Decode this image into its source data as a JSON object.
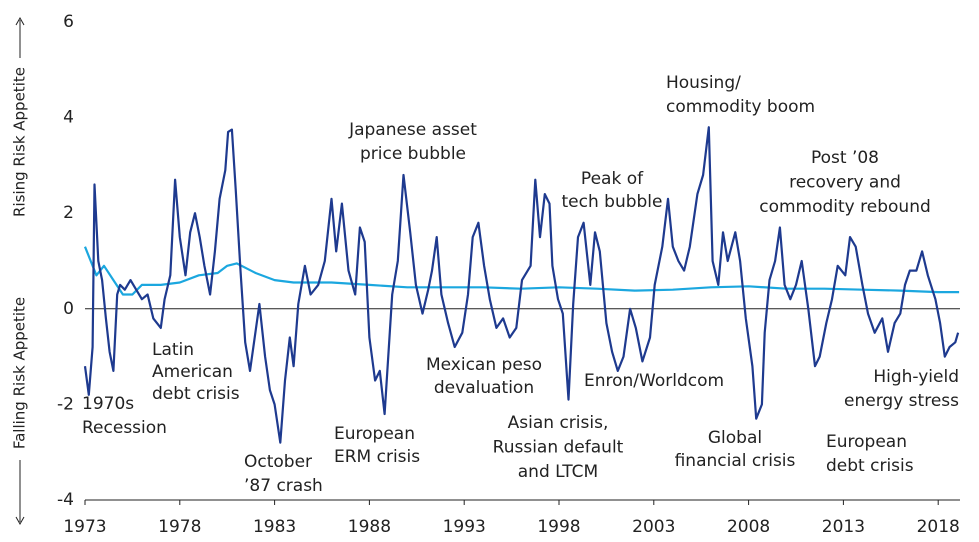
{
  "chart_data": {
    "type": "line",
    "y_label_upper": "Rising Risk Appetite",
    "y_label_lower": "Falling Risk Appetite",
    "xlim": [
      1973,
      2019.15
    ],
    "xticks": [
      1973,
      1978,
      1983,
      1988,
      1993,
      1998,
      2003,
      2008,
      2013,
      2018
    ],
    "ylim": [
      -4,
      6
    ],
    "yticks": [
      -4,
      -2,
      0,
      2,
      4,
      6
    ],
    "grid": false,
    "series": [
      {
        "color": "#1e3a8f",
        "x": [
          1973.0,
          1973.2,
          1973.4,
          1973.5,
          1973.7,
          1973.9,
          1974.1,
          1974.3,
          1974.5,
          1974.7,
          1974.85,
          1975.1,
          1975.4,
          1975.7,
          1976.0,
          1976.3,
          1976.6,
          1977.0,
          1977.2,
          1977.5,
          1977.75,
          1978.0,
          1978.3,
          1978.55,
          1978.8,
          1979.05,
          1979.3,
          1979.6,
          1979.85,
          1980.1,
          1980.4,
          1980.55,
          1980.75,
          1980.95,
          1981.2,
          1981.45,
          1981.7,
          1981.95,
          1982.2,
          1982.5,
          1982.75,
          1983.0,
          1983.3,
          1983.55,
          1983.8,
          1984.0,
          1984.25,
          1984.6,
          1984.9,
          1985.3,
          1985.65,
          1986.0,
          1986.25,
          1986.55,
          1986.9,
          1987.25,
          1987.5,
          1987.75,
          1988.0,
          1988.3,
          1988.55,
          1988.8,
          1989.2,
          1989.5,
          1989.8,
          1990.15,
          1990.45,
          1990.8,
          1991.1,
          1991.3,
          1991.55,
          1991.8,
          1992.15,
          1992.5,
          1992.9,
          1993.2,
          1993.45,
          1993.75,
          1994.05,
          1994.35,
          1994.7,
          1995.05,
          1995.4,
          1995.75,
          1996.05,
          1996.5,
          1996.75,
          1997.0,
          1997.25,
          1997.5,
          1997.65,
          1997.95,
          1998.2,
          1998.5,
          1998.75,
          1999.0,
          1999.3,
          1999.65,
          1999.9,
          2000.15,
          2000.5,
          2000.8,
          2001.1,
          2001.4,
          2001.75,
          2002.05,
          2002.4,
          2002.8,
          2003.05,
          2003.45,
          2003.75,
          2004.0,
          2004.3,
          2004.6,
          2004.9,
          2005.3,
          2005.6,
          2005.9,
          2006.1,
          2006.4,
          2006.65,
          2006.9,
          2007.3,
          2007.55,
          2007.85,
          2008.2,
          2008.4,
          2008.7,
          2008.85,
          2009.1,
          2009.4,
          2009.65,
          2009.9,
          2010.2,
          2010.5,
          2010.8,
          2011.15,
          2011.5,
          2011.75,
          2012.1,
          2012.4,
          2012.7,
          2013.1,
          2013.35,
          2013.65,
          2014.0,
          2014.3,
          2014.65,
          2015.05,
          2015.35,
          2015.7,
          2016.0,
          2016.25,
          2016.5,
          2016.85,
          2017.15,
          2017.45,
          2017.85,
          2018.1,
          2018.35,
          2018.6,
          2018.9,
          2019.05
        ],
        "values": [
          -1.2,
          -1.8,
          -0.8,
          2.6,
          1.0,
          0.6,
          -0.2,
          -0.9,
          -1.3,
          0.3,
          0.5,
          0.4,
          0.6,
          0.4,
          0.2,
          0.3,
          -0.2,
          -0.4,
          0.2,
          0.7,
          2.7,
          1.5,
          0.7,
          1.6,
          2.0,
          1.5,
          0.9,
          0.3,
          1.2,
          2.3,
          2.9,
          3.7,
          3.75,
          2.5,
          0.8,
          -0.7,
          -1.3,
          -0.6,
          0.1,
          -1.0,
          -1.7,
          -2.0,
          -2.8,
          -1.5,
          -0.6,
          -1.2,
          0.1,
          0.9,
          0.3,
          0.5,
          1.0,
          2.3,
          1.2,
          2.2,
          0.8,
          0.3,
          1.7,
          1.4,
          -0.6,
          -1.5,
          -1.3,
          -2.2,
          0.3,
          1.0,
          2.8,
          1.6,
          0.5,
          -0.1,
          0.4,
          0.8,
          1.5,
          0.3,
          -0.3,
          -0.8,
          -0.5,
          0.3,
          1.5,
          1.8,
          0.9,
          0.2,
          -0.4,
          -0.2,
          -0.6,
          -0.4,
          0.6,
          0.9,
          2.7,
          1.5,
          2.4,
          2.2,
          0.9,
          0.2,
          -0.1,
          -1.9,
          0.1,
          1.5,
          1.8,
          0.5,
          1.6,
          1.2,
          -0.3,
          -0.9,
          -1.3,
          -1.0,
          0.0,
          -0.4,
          -1.1,
          -0.6,
          0.5,
          1.3,
          2.3,
          1.3,
          1.0,
          0.8,
          1.3,
          2.4,
          2.8,
          3.8,
          1.0,
          0.5,
          1.6,
          1.0,
          1.6,
          1.0,
          -0.2,
          -1.2,
          -2.3,
          -2.0,
          -0.5,
          0.6,
          1.0,
          1.7,
          0.5,
          0.2,
          0.5,
          1.0,
          0.0,
          -1.2,
          -1.0,
          -0.3,
          0.2,
          0.9,
          0.7,
          1.5,
          1.3,
          0.5,
          -0.1,
          -0.5,
          -0.2,
          -0.9,
          -0.3,
          -0.1,
          0.5,
          0.8,
          0.8,
          1.2,
          0.7,
          0.2,
          -0.3,
          -1.0,
          -0.8,
          -0.7,
          -0.5
        ]
      },
      {
        "color": "#1ba7df",
        "x": [
          1973,
          1973.3,
          1973.6,
          1974,
          1974.5,
          1975,
          1975.5,
          1976,
          1977,
          1978,
          1979,
          1980,
          1980.5,
          1981,
          1981.5,
          1982,
          1983,
          1984,
          1985,
          1986,
          1988,
          1990,
          1992,
          1994,
          1996,
          1998,
          2000,
          2002,
          2004,
          2006,
          2008,
          2010,
          2012,
          2014,
          2016,
          2018,
          2019.1
        ],
        "values": [
          1.3,
          1.0,
          0.7,
          0.9,
          0.6,
          0.3,
          0.3,
          0.5,
          0.5,
          0.55,
          0.7,
          0.75,
          0.9,
          0.95,
          0.85,
          0.75,
          0.6,
          0.55,
          0.55,
          0.55,
          0.5,
          0.45,
          0.45,
          0.45,
          0.42,
          0.45,
          0.42,
          0.38,
          0.4,
          0.45,
          0.47,
          0.42,
          0.42,
          0.4,
          0.38,
          0.35,
          0.35
        ]
      }
    ],
    "annotations": [
      {
        "lines": [
          "1970s",
          "Recession"
        ]
      },
      {
        "lines": [
          "Latin",
          "American",
          "debt crisis"
        ]
      },
      {
        "lines": [
          "October",
          "’87 crash"
        ]
      },
      {
        "lines": [
          "Japanese asset",
          "price bubble"
        ]
      },
      {
        "lines": [
          "European",
          "ERM crisis"
        ]
      },
      {
        "lines": [
          "Mexican peso",
          "devaluation"
        ]
      },
      {
        "lines": [
          "Asian crisis,",
          "Russian default",
          "and LTCM"
        ]
      },
      {
        "lines": [
          "Peak of",
          "tech bubble"
        ]
      },
      {
        "lines": [
          "Enron/Worldcom"
        ]
      },
      {
        "lines": [
          "Housing/",
          "commodity boom"
        ]
      },
      {
        "lines": [
          "Global",
          "financial crisis"
        ]
      },
      {
        "lines": [
          "Post ’08",
          "recovery and",
          "commodity rebound"
        ]
      },
      {
        "lines": [
          "European",
          "debt crisis"
        ]
      },
      {
        "lines": [
          "High-yield",
          "energy stress"
        ]
      }
    ]
  }
}
